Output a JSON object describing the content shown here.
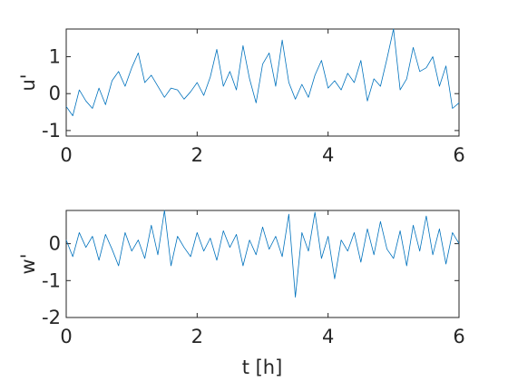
{
  "colors": {
    "series": "#0072BD",
    "axes": "#262626",
    "background": "#ffffff"
  },
  "chart_data": [
    {
      "type": "line",
      "ylabel": "u'",
      "xlabel": "",
      "xlim": [
        0,
        6
      ],
      "ylim": [
        -1.15,
        1.75
      ],
      "xticks": [
        0,
        2,
        4,
        6
      ],
      "yticks": [
        -1,
        0,
        1
      ],
      "xtick_labels": [
        "0",
        "2",
        "4",
        "6"
      ],
      "ytick_labels": [
        "-1",
        "0",
        "1"
      ],
      "grid": false,
      "series": [
        {
          "x": [
            0,
            0.1,
            0.2,
            0.3,
            0.4,
            0.5,
            0.6,
            0.7,
            0.8,
            0.9,
            1.0,
            1.1,
            1.2,
            1.3,
            1.4,
            1.5,
            1.6,
            1.7,
            1.8,
            1.9,
            2.0,
            2.1,
            2.2,
            2.3,
            2.4,
            2.5,
            2.6,
            2.7,
            2.8,
            2.9,
            3.0,
            3.1,
            3.2,
            3.3,
            3.4,
            3.5,
            3.6,
            3.7,
            3.8,
            3.9,
            4.0,
            4.1,
            4.2,
            4.3,
            4.4,
            4.5,
            4.6,
            4.7,
            4.8,
            4.9,
            5.0,
            5.1,
            5.2,
            5.3,
            5.4,
            5.5,
            5.6,
            5.7,
            5.8,
            5.9,
            6.0
          ],
          "y": [
            -0.35,
            -0.6,
            0.1,
            -0.2,
            -0.4,
            0.15,
            -0.3,
            0.35,
            0.6,
            0.2,
            0.7,
            1.1,
            0.3,
            0.5,
            0.2,
            -0.1,
            0.15,
            0.1,
            -0.15,
            0.05,
            0.3,
            -0.05,
            0.45,
            1.2,
            0.2,
            0.6,
            0.1,
            1.3,
            0.4,
            -0.25,
            0.8,
            1.1,
            0.2,
            1.45,
            0.3,
            -0.15,
            0.25,
            -0.1,
            0.5,
            0.9,
            0.15,
            0.35,
            0.1,
            0.55,
            0.3,
            0.9,
            -0.2,
            0.4,
            0.2,
            0.95,
            1.75,
            0.1,
            0.4,
            1.25,
            0.6,
            0.7,
            1.0,
            0.2,
            0.75,
            -0.4,
            -0.25
          ]
        }
      ]
    },
    {
      "type": "line",
      "ylabel": "w'",
      "xlabel": "t [h]",
      "xlim": [
        0,
        6
      ],
      "ylim": [
        -2,
        0.9
      ],
      "xticks": [
        0,
        2,
        4,
        6
      ],
      "yticks": [
        -2,
        -1,
        0
      ],
      "xtick_labels": [
        "0",
        "2",
        "4",
        "6"
      ],
      "ytick_labels": [
        "-2",
        "-1",
        "0"
      ],
      "grid": false,
      "series": [
        {
          "x": [
            0,
            0.1,
            0.2,
            0.3,
            0.4,
            0.5,
            0.6,
            0.7,
            0.8,
            0.9,
            1.0,
            1.1,
            1.2,
            1.3,
            1.4,
            1.5,
            1.6,
            1.7,
            1.8,
            1.9,
            2.0,
            2.1,
            2.2,
            2.3,
            2.4,
            2.5,
            2.6,
            2.7,
            2.8,
            2.9,
            3.0,
            3.1,
            3.2,
            3.3,
            3.4,
            3.5,
            3.6,
            3.7,
            3.8,
            3.9,
            4.0,
            4.1,
            4.2,
            4.3,
            4.4,
            4.5,
            4.6,
            4.7,
            4.8,
            4.9,
            5.0,
            5.1,
            5.2,
            5.3,
            5.4,
            5.5,
            5.6,
            5.7,
            5.8,
            5.9,
            6.0
          ],
          "y": [
            0.1,
            -0.35,
            0.3,
            -0.1,
            0.2,
            -0.45,
            0.25,
            -0.15,
            -0.6,
            0.3,
            -0.2,
            0.1,
            -0.4,
            0.5,
            -0.3,
            0.9,
            -0.6,
            0.2,
            -0.1,
            -0.35,
            0.3,
            -0.2,
            0.15,
            -0.45,
            0.35,
            -0.1,
            0.25,
            -0.6,
            0.1,
            -0.3,
            0.45,
            -0.15,
            0.2,
            -0.35,
            0.8,
            -1.45,
            0.3,
            -0.2,
            0.85,
            -0.4,
            0.2,
            -0.95,
            0.1,
            -0.2,
            0.3,
            -0.5,
            0.4,
            -0.3,
            0.6,
            -0.15,
            -0.4,
            0.35,
            -0.6,
            0.5,
            -0.2,
            0.75,
            -0.3,
            0.4,
            -0.55,
            0.3,
            0.0
          ]
        }
      ]
    }
  ]
}
